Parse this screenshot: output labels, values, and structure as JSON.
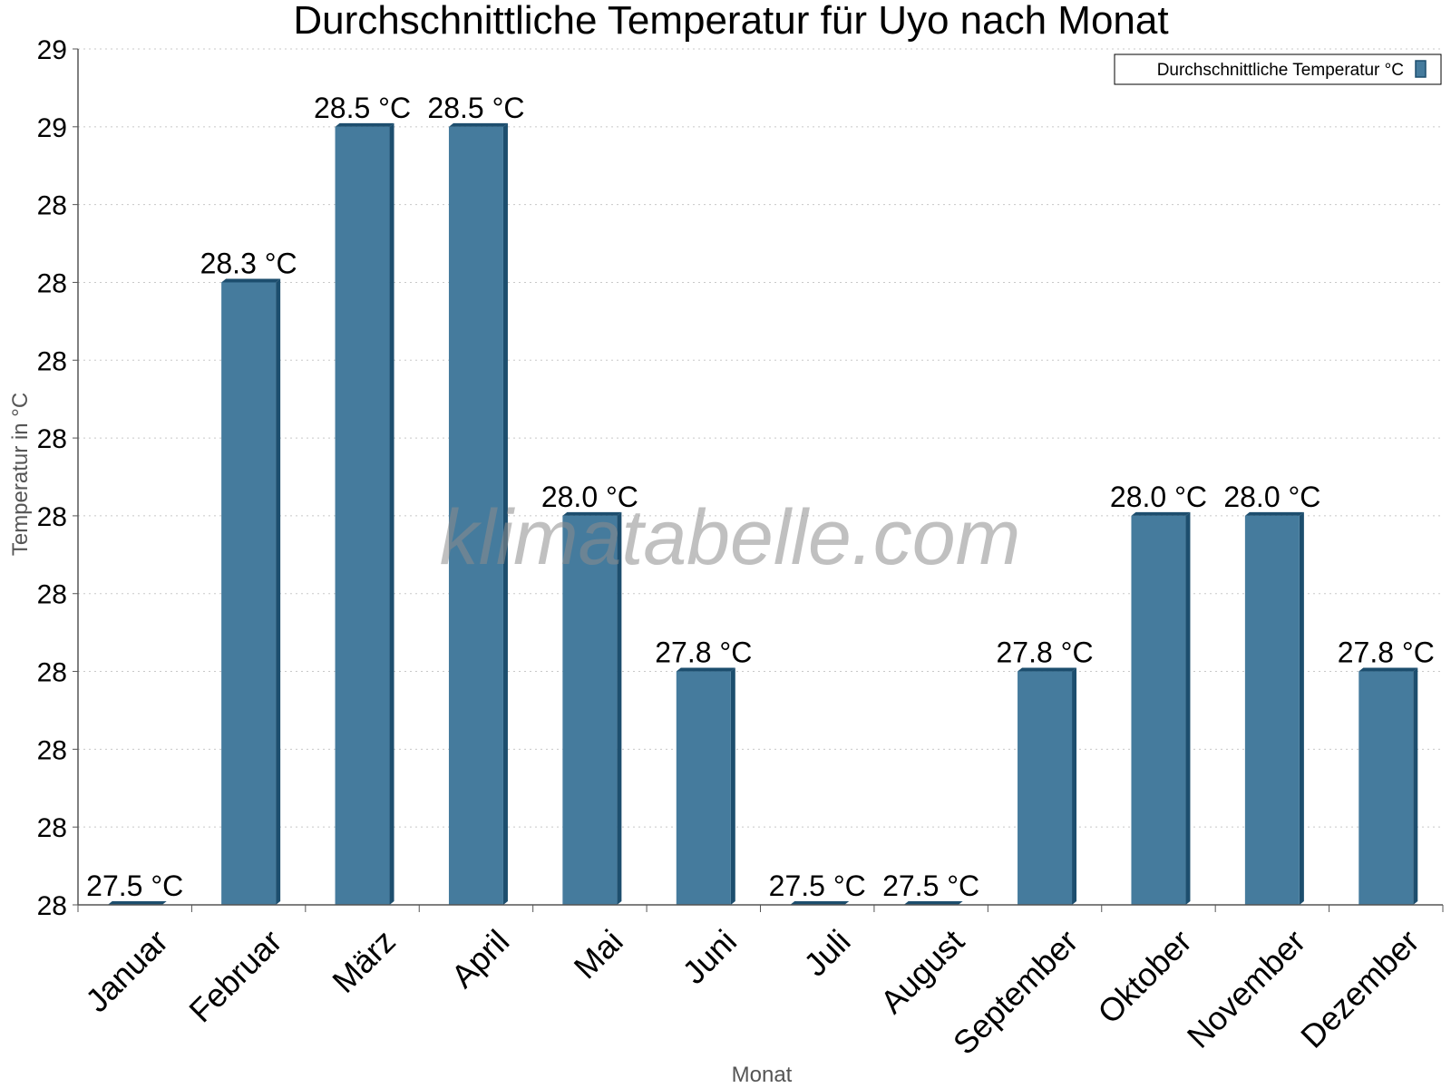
{
  "chart_data": {
    "type": "bar",
    "title": "Durchschnittliche Temperatur für Uyo nach Monat",
    "xlabel": "Monat",
    "ylabel": "Temperatur in °C",
    "categories": [
      "Januar",
      "Februar",
      "März",
      "April",
      "Mai",
      "Juni",
      "Juli",
      "August",
      "September",
      "Oktober",
      "November",
      "Dezember"
    ],
    "series": [
      {
        "name": "Durchschnittliche Temperatur °C",
        "values": [
          27.5,
          28.3,
          28.5,
          28.5,
          28.0,
          27.8,
          27.5,
          27.5,
          27.8,
          28.0,
          28.0,
          27.8
        ],
        "data_labels": [
          "27.5 °C",
          "28.3 °C",
          "28.5 °C",
          "28.5 °C",
          "28.0 °C",
          "27.8 °C",
          "27.5 °C",
          "27.5 °C",
          "27.8 °C",
          "28.0 °C",
          "28.0 °C",
          "27.8 °C"
        ]
      }
    ],
    "ylim": [
      27.5,
      28.6
    ],
    "yticks": [
      27.5,
      27.6,
      27.7,
      27.8,
      27.9,
      28.0,
      28.1,
      28.2,
      28.3,
      28.4,
      28.5,
      28.6
    ],
    "ytick_labels": [
      "28",
      "28",
      "28",
      "28",
      "28",
      "28",
      "28",
      "28",
      "28",
      "28",
      "29",
      "29"
    ],
    "grid": true,
    "legend_position": "top-right",
    "watermark": "klimatabelle.com",
    "colors": {
      "bar": "#457b9d",
      "bar_side": "#1d4e6e",
      "grid": "#c8c8c8",
      "axis": "#555555"
    }
  }
}
